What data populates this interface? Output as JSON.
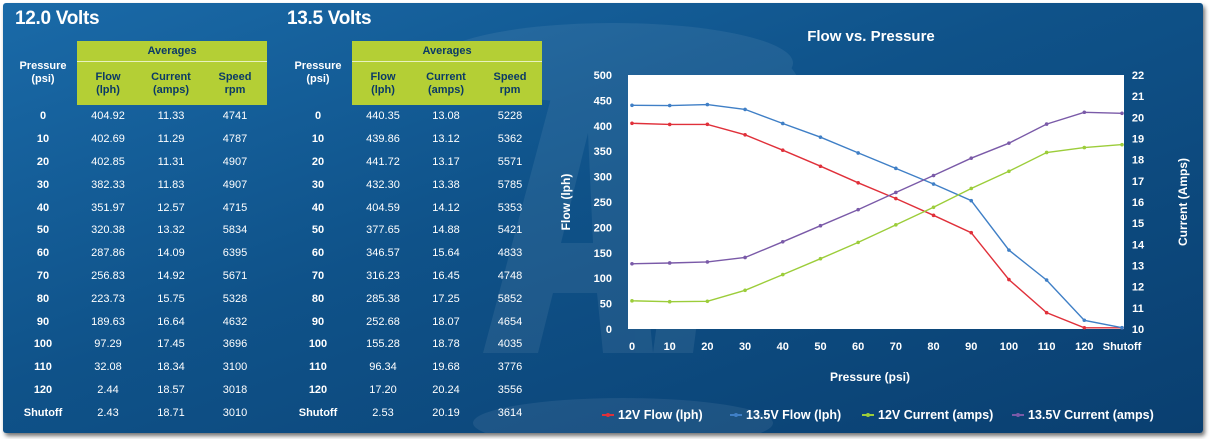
{
  "sections": [
    {
      "title": "12.0 Volts",
      "header": {
        "pressure": "Pressure",
        "pressure_unit": "(psi)",
        "averages": "Averages",
        "flow": "Flow",
        "flow_unit": "(lph)",
        "current": "Current",
        "current_unit": "(amps)",
        "speed": "Speed",
        "speed_unit": "rpm"
      },
      "rows": [
        {
          "p": "0",
          "flow": "404.92",
          "current": "11.33",
          "speed": "4741"
        },
        {
          "p": "10",
          "flow": "402.69",
          "current": "11.29",
          "speed": "4787"
        },
        {
          "p": "20",
          "flow": "402.85",
          "current": "11.31",
          "speed": "4907"
        },
        {
          "p": "30",
          "flow": "382.33",
          "current": "11.83",
          "speed": "4907"
        },
        {
          "p": "40",
          "flow": "351.97",
          "current": "12.57",
          "speed": "4715"
        },
        {
          "p": "50",
          "flow": "320.38",
          "current": "13.32",
          "speed": "5834"
        },
        {
          "p": "60",
          "flow": "287.86",
          "current": "14.09",
          "speed": "6395"
        },
        {
          "p": "70",
          "flow": "256.83",
          "current": "14.92",
          "speed": "5671"
        },
        {
          "p": "80",
          "flow": "223.73",
          "current": "15.75",
          "speed": "5328"
        },
        {
          "p": "90",
          "flow": "189.63",
          "current": "16.64",
          "speed": "4632"
        },
        {
          "p": "100",
          "flow": "97.29",
          "current": "17.45",
          "speed": "3696"
        },
        {
          "p": "110",
          "flow": "32.08",
          "current": "18.34",
          "speed": "3100"
        },
        {
          "p": "120",
          "flow": "2.44",
          "current": "18.57",
          "speed": "3018"
        },
        {
          "p": "Shutoff",
          "flow": "2.43",
          "current": "18.71",
          "speed": "3010"
        }
      ]
    },
    {
      "title": "13.5 Volts",
      "header": {
        "pressure": "Pressure",
        "pressure_unit": "(psi)",
        "averages": "Averages",
        "flow": "Flow",
        "flow_unit": "(lph)",
        "current": "Current",
        "current_unit": "(amps)",
        "speed": "Speed",
        "speed_unit": "rpm"
      },
      "rows": [
        {
          "p": "0",
          "flow": "440.35",
          "current": "13.08",
          "speed": "5228"
        },
        {
          "p": "10",
          "flow": "439.86",
          "current": "13.12",
          "speed": "5362"
        },
        {
          "p": "20",
          "flow": "441.72",
          "current": "13.17",
          "speed": "5571"
        },
        {
          "p": "30",
          "flow": "432.30",
          "current": "13.38",
          "speed": "5785"
        },
        {
          "p": "40",
          "flow": "404.59",
          "current": "14.12",
          "speed": "5353"
        },
        {
          "p": "50",
          "flow": "377.65",
          "current": "14.88",
          "speed": "5421"
        },
        {
          "p": "60",
          "flow": "346.57",
          "current": "15.64",
          "speed": "4833"
        },
        {
          "p": "70",
          "flow": "316.23",
          "current": "16.45",
          "speed": "4748"
        },
        {
          "p": "80",
          "flow": "285.38",
          "current": "17.25",
          "speed": "5852"
        },
        {
          "p": "90",
          "flow": "252.68",
          "current": "18.07",
          "speed": "4654"
        },
        {
          "p": "100",
          "flow": "155.28",
          "current": "18.78",
          "speed": "4035"
        },
        {
          "p": "110",
          "flow": "96.34",
          "current": "19.68",
          "speed": "3776"
        },
        {
          "p": "120",
          "flow": "17.20",
          "current": "20.24",
          "speed": "3556"
        },
        {
          "p": "Shutoff",
          "flow": "2.53",
          "current": "20.19",
          "speed": "3614"
        }
      ]
    }
  ],
  "colors": {
    "background": "#0f5289",
    "header_green": "#b4cf35",
    "flow_12v": "#e0303a",
    "flow_135v": "#3f7fc6",
    "current_12v": "#9ccd3a",
    "current_135v": "#7a5aa8"
  },
  "chart_data": {
    "type": "line",
    "title": "Flow vs. Pressure",
    "xlabel": "Pressure (psi)",
    "ylabel": "Flow (lph)",
    "y2label": "Current (Amps)",
    "categories": [
      "0",
      "10",
      "20",
      "30",
      "40",
      "50",
      "60",
      "70",
      "80",
      "90",
      "100",
      "110",
      "120",
      "Shutoff"
    ],
    "ylim": [
      0,
      500
    ],
    "y2lim": [
      10,
      22
    ],
    "yticks": [
      0,
      50,
      100,
      150,
      200,
      250,
      300,
      350,
      400,
      450,
      500
    ],
    "y2ticks": [
      10,
      11,
      12,
      13,
      14,
      15,
      16,
      17,
      18,
      19,
      20,
      21,
      22
    ],
    "grid": false,
    "legend_position": "bottom",
    "series": [
      {
        "name": "12V Flow (lph)",
        "axis": "left",
        "color": "#e0303a",
        "values": [
          404.92,
          402.69,
          402.85,
          382.33,
          351.97,
          320.38,
          287.86,
          256.83,
          223.73,
          189.63,
          97.29,
          32.08,
          2.44,
          2.43
        ]
      },
      {
        "name": "13.5V Flow (lph)",
        "axis": "left",
        "color": "#3f7fc6",
        "values": [
          440.35,
          439.86,
          441.72,
          432.3,
          404.59,
          377.65,
          346.57,
          316.23,
          285.38,
          252.68,
          155.28,
          96.34,
          17.2,
          2.53
        ]
      },
      {
        "name": "12V Current (amps)",
        "axis": "right",
        "color": "#9ccd3a",
        "values": [
          11.33,
          11.29,
          11.31,
          11.83,
          12.57,
          13.32,
          14.09,
          14.92,
          15.75,
          16.64,
          17.45,
          18.34,
          18.57,
          18.71
        ]
      },
      {
        "name": "13.5V Current (amps)",
        "axis": "right",
        "color": "#7a5aa8",
        "values": [
          13.08,
          13.12,
          13.17,
          13.38,
          14.12,
          14.88,
          15.64,
          16.45,
          17.25,
          18.07,
          18.78,
          19.68,
          20.24,
          20.19
        ]
      }
    ]
  }
}
